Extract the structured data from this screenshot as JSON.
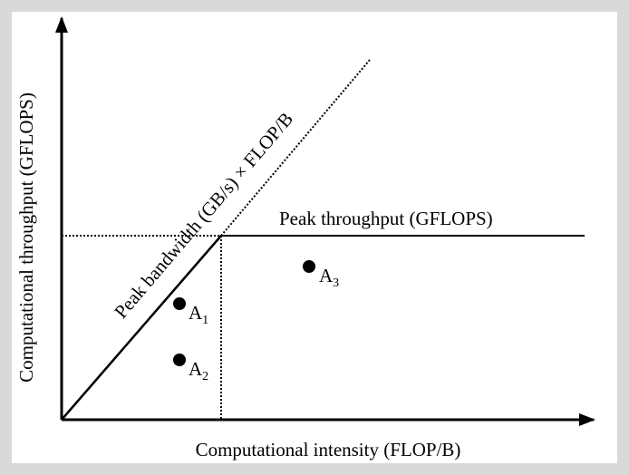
{
  "diagram": {
    "x_axis_label": "Computational intensity (FLOP/B)",
    "y_axis_label": "Computational throughput (GFLOPS)",
    "bandwidth_label": "Peak bandwidth (GB/s) × FLOP/B",
    "throughput_label": "Peak throughput (GFLOPS)",
    "points": [
      {
        "letter": "A",
        "sub": "1"
      },
      {
        "letter": "A",
        "sub": "2"
      },
      {
        "letter": "A",
        "sub": "3"
      }
    ],
    "colors": {
      "frame": "#d9d9d9",
      "background": "#ffffff",
      "ink": "#000000"
    }
  }
}
